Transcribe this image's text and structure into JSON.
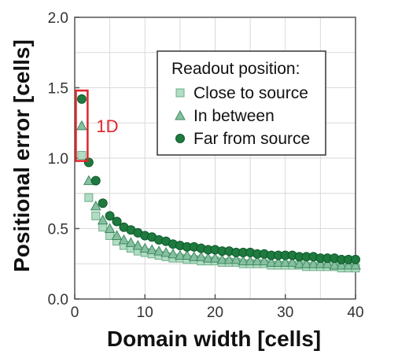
{
  "chart_data": {
    "type": "scatter",
    "xlabel": "Domain width [cells]",
    "ylabel": "Positional error [cells]",
    "xlim": [
      0,
      40
    ],
    "ylim": [
      0,
      2.0
    ],
    "xticks": [
      0,
      10,
      20,
      30,
      40
    ],
    "yticks": [
      0.0,
      0.5,
      1.0,
      1.5,
      2.0
    ],
    "ytick_labels": [
      "0.0",
      "0.5",
      "1.0",
      "1.5",
      "2.0"
    ],
    "grid": true,
    "legend": {
      "title": "Readout position:",
      "placement": "top-right"
    },
    "annotation": {
      "text": "1D",
      "color": "#e0242b",
      "x_range": [
        0.5,
        1.5
      ],
      "y_range": [
        0.98,
        1.48
      ]
    },
    "series": [
      {
        "name": "Close to source",
        "marker": "square",
        "fill": "#b2dcc4",
        "stroke": "#6fae89",
        "x": [
          1,
          2,
          3,
          4,
          5,
          6,
          7,
          8,
          9,
          10,
          11,
          12,
          13,
          14,
          15,
          16,
          17,
          18,
          19,
          20,
          21,
          22,
          23,
          24,
          25,
          26,
          27,
          28,
          29,
          30,
          31,
          32,
          33,
          34,
          35,
          36,
          37,
          38,
          39,
          40
        ],
        "y": [
          1.02,
          0.72,
          0.59,
          0.51,
          0.45,
          0.41,
          0.38,
          0.36,
          0.34,
          0.33,
          0.32,
          0.31,
          0.3,
          0.29,
          0.29,
          0.28,
          0.28,
          0.27,
          0.27,
          0.27,
          0.26,
          0.26,
          0.26,
          0.25,
          0.25,
          0.25,
          0.25,
          0.24,
          0.24,
          0.24,
          0.24,
          0.24,
          0.23,
          0.23,
          0.23,
          0.23,
          0.23,
          0.22,
          0.22,
          0.22
        ]
      },
      {
        "name": "In between",
        "marker": "triangle",
        "fill": "#86c0a0",
        "stroke": "#3d8a5f",
        "x": [
          1,
          2,
          3,
          4,
          5,
          6,
          7,
          8,
          9,
          10,
          11,
          12,
          13,
          14,
          15,
          16,
          17,
          18,
          19,
          20,
          21,
          22,
          23,
          24,
          25,
          26,
          27,
          28,
          29,
          30,
          31,
          32,
          33,
          34,
          35,
          36,
          37,
          38,
          39,
          40
        ],
        "y": [
          1.23,
          0.84,
          0.66,
          0.56,
          0.5,
          0.45,
          0.42,
          0.4,
          0.38,
          0.36,
          0.35,
          0.34,
          0.33,
          0.32,
          0.31,
          0.31,
          0.3,
          0.3,
          0.29,
          0.29,
          0.28,
          0.28,
          0.28,
          0.27,
          0.27,
          0.27,
          0.27,
          0.26,
          0.26,
          0.26,
          0.26,
          0.25,
          0.25,
          0.25,
          0.25,
          0.25,
          0.24,
          0.24,
          0.24,
          0.24
        ]
      },
      {
        "name": "Far from source",
        "marker": "circle",
        "fill": "#1e7a3f",
        "stroke": "#0f5a2b",
        "x": [
          1,
          2,
          3,
          4,
          5,
          6,
          7,
          8,
          9,
          10,
          11,
          12,
          13,
          14,
          15,
          16,
          17,
          18,
          19,
          20,
          21,
          22,
          23,
          24,
          25,
          26,
          27,
          28,
          29,
          30,
          31,
          32,
          33,
          34,
          35,
          36,
          37,
          38,
          39,
          40
        ],
        "y": [
          1.42,
          0.97,
          0.84,
          0.68,
          0.59,
          0.55,
          0.51,
          0.49,
          0.47,
          0.45,
          0.44,
          0.42,
          0.41,
          0.39,
          0.38,
          0.37,
          0.37,
          0.36,
          0.35,
          0.35,
          0.34,
          0.34,
          0.33,
          0.33,
          0.33,
          0.32,
          0.32,
          0.31,
          0.31,
          0.31,
          0.31,
          0.3,
          0.3,
          0.3,
          0.29,
          0.29,
          0.29,
          0.28,
          0.28,
          0.28
        ]
      }
    ]
  }
}
